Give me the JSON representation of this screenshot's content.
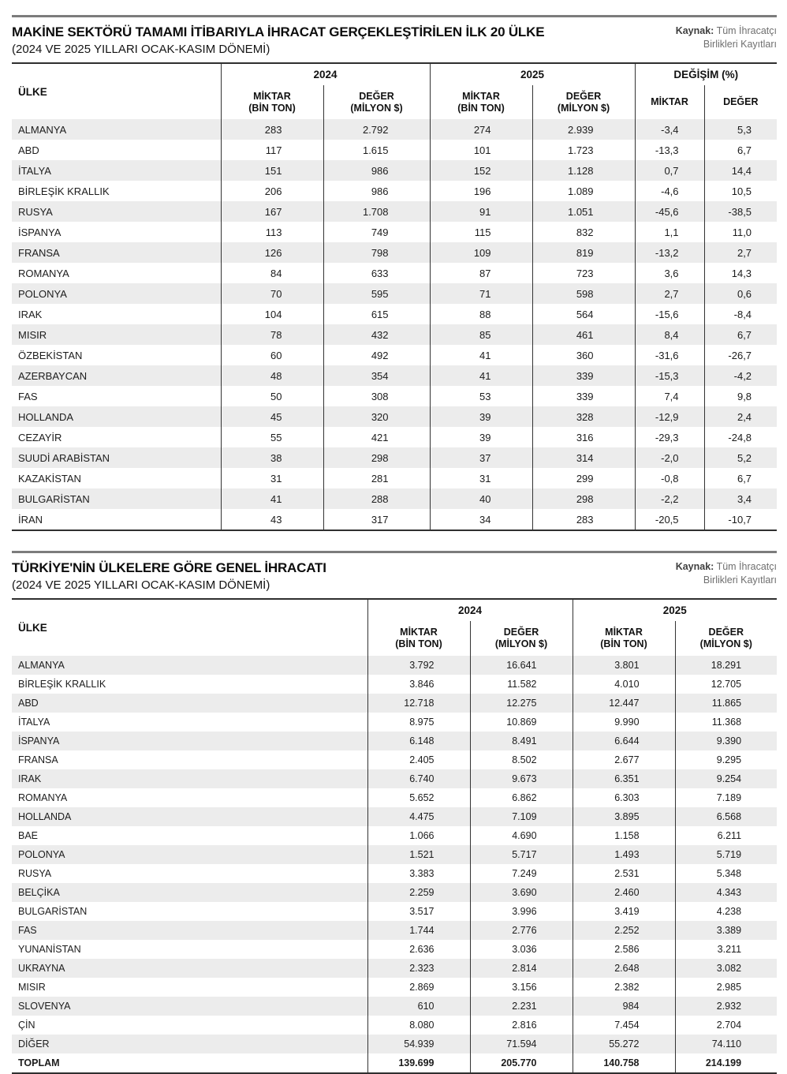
{
  "labels": {
    "country": "ÜLKE",
    "year_2024": "2024",
    "year_2025": "2025",
    "change_pct": "DEĞİŞİM (%)",
    "amount_l1": "MİKTAR",
    "amount_l2": "(BİN TON)",
    "value_l1": "DEĞER",
    "value_l2": "(MİLYON $)",
    "amount_short": "MİKTAR",
    "value_short": "DEĞER"
  },
  "chart_data": [
    {
      "type": "table",
      "title": "MAKİNE SEKTÖRÜ TAMAMI İTİBARIYLA İHRACAT GERÇEKLEŞTİRİLEN İLK 20 ÜLKE",
      "subtitle": "(2024 VE 2025 YILLARI OCAK-KASIM DÖNEMİ)",
      "source_label": "Kaynak:",
      "source_text": "Tüm İhracatçı Birlikleri Kayıtları",
      "column_groups": [
        "",
        "2024",
        "2025",
        "DEĞİŞİM (%)"
      ],
      "columns": [
        "ÜLKE",
        "MİKTAR (BİN TON)",
        "DEĞER (MİLYON $)",
        "MİKTAR (BİN TON)",
        "DEĞER (MİLYON $)",
        "MİKTAR",
        "DEĞER"
      ],
      "rows": [
        [
          "ALMANYA",
          "283",
          "2.792",
          "274",
          "2.939",
          "-3,4",
          "5,3"
        ],
        [
          "ABD",
          "117",
          "1.615",
          "101",
          "1.723",
          "-13,3",
          "6,7"
        ],
        [
          "İTALYA",
          "151",
          "986",
          "152",
          "1.128",
          "0,7",
          "14,4"
        ],
        [
          "BİRLEŞİK KRALLIK",
          "206",
          "986",
          "196",
          "1.089",
          "-4,6",
          "10,5"
        ],
        [
          "RUSYA",
          "167",
          "1.708",
          "91",
          "1.051",
          "-45,6",
          "-38,5"
        ],
        [
          "İSPANYA",
          "113",
          "749",
          "115",
          "832",
          "1,1",
          "11,0"
        ],
        [
          "FRANSA",
          "126",
          "798",
          "109",
          "819",
          "-13,2",
          "2,7"
        ],
        [
          "ROMANYA",
          "84",
          "633",
          "87",
          "723",
          "3,6",
          "14,3"
        ],
        [
          "POLONYA",
          "70",
          "595",
          "71",
          "598",
          "2,7",
          "0,6"
        ],
        [
          "IRAK",
          "104",
          "615",
          "88",
          "564",
          "-15,6",
          "-8,4"
        ],
        [
          "MISIR",
          "78",
          "432",
          "85",
          "461",
          "8,4",
          "6,7"
        ],
        [
          "ÖZBEKİSTAN",
          "60",
          "492",
          "41",
          "360",
          "-31,6",
          "-26,7"
        ],
        [
          "AZERBAYCAN",
          "48",
          "354",
          "41",
          "339",
          "-15,3",
          "-4,2"
        ],
        [
          "FAS",
          "50",
          "308",
          "53",
          "339",
          "7,4",
          "9,8"
        ],
        [
          "HOLLANDA",
          "45",
          "320",
          "39",
          "328",
          "-12,9",
          "2,4"
        ],
        [
          "CEZAYİR",
          "55",
          "421",
          "39",
          "316",
          "-29,3",
          "-24,8"
        ],
        [
          "SUUDİ ARABİSTAN",
          "38",
          "298",
          "37",
          "314",
          "-2,0",
          "5,2"
        ],
        [
          "KAZAKİSTAN",
          "31",
          "281",
          "31",
          "299",
          "-0,8",
          "6,7"
        ],
        [
          "BULGARİSTAN",
          "41",
          "288",
          "40",
          "298",
          "-2,2",
          "3,4"
        ],
        [
          "İRAN",
          "43",
          "317",
          "34",
          "283",
          "-20,5",
          "-10,7"
        ]
      ]
    },
    {
      "type": "table",
      "title": "TÜRKİYE'NİN ÜLKELERE GÖRE GENEL İHRACATI",
      "subtitle": "(2024 VE 2025 YILLARI OCAK-KASIM DÖNEMİ)",
      "source_label": "Kaynak:",
      "source_text": "Tüm İhracatçı Birlikleri Kayıtları",
      "column_groups": [
        "",
        "2024",
        "2025"
      ],
      "columns": [
        "ÜLKE",
        "MİKTAR (BİN TON)",
        "DEĞER (MİLYON $)",
        "MİKTAR (BİN TON)",
        "DEĞER (MİLYON $)"
      ],
      "total_row_index": 21,
      "rows": [
        [
          "ALMANYA",
          "3.792",
          "16.641",
          "3.801",
          "18.291"
        ],
        [
          "BİRLEŞİK KRALLIK",
          "3.846",
          "11.582",
          "4.010",
          "12.705"
        ],
        [
          "ABD",
          "12.718",
          "12.275",
          "12.447",
          "11.865"
        ],
        [
          "İTALYA",
          "8.975",
          "10.869",
          "9.990",
          "11.368"
        ],
        [
          "İSPANYA",
          "6.148",
          "8.491",
          "6.644",
          "9.390"
        ],
        [
          "FRANSA",
          "2.405",
          "8.502",
          "2.677",
          "9.295"
        ],
        [
          "IRAK",
          "6.740",
          "9.673",
          "6.351",
          "9.254"
        ],
        [
          "ROMANYA",
          "5.652",
          "6.862",
          "6.303",
          "7.189"
        ],
        [
          "HOLLANDA",
          "4.475",
          "7.109",
          "3.895",
          "6.568"
        ],
        [
          "BAE",
          "1.066",
          "4.690",
          "1.158",
          "6.211"
        ],
        [
          "POLONYA",
          "1.521",
          "5.717",
          "1.493",
          "5.719"
        ],
        [
          "RUSYA",
          "3.383",
          "7.249",
          "2.531",
          "5.348"
        ],
        [
          "BELÇİKA",
          "2.259",
          "3.690",
          "2.460",
          "4.343"
        ],
        [
          "BULGARİSTAN",
          "3.517",
          "3.996",
          "3.419",
          "4.238"
        ],
        [
          "FAS",
          "1.744",
          "2.776",
          "2.252",
          "3.389"
        ],
        [
          "YUNANİSTAN",
          "2.636",
          "3.036",
          "2.586",
          "3.211"
        ],
        [
          "UKRAYNA",
          "2.323",
          "2.814",
          "2.648",
          "3.082"
        ],
        [
          "MISIR",
          "2.869",
          "3.156",
          "2.382",
          "2.985"
        ],
        [
          "SLOVENYA",
          "610",
          "2.231",
          "984",
          "2.932"
        ],
        [
          "ÇİN",
          "8.080",
          "2.816",
          "7.454",
          "2.704"
        ],
        [
          "DİĞER",
          "54.939",
          "71.594",
          "55.272",
          "74.110"
        ],
        [
          "TOPLAM",
          "139.699",
          "205.770",
          "140.758",
          "214.199"
        ]
      ]
    }
  ]
}
